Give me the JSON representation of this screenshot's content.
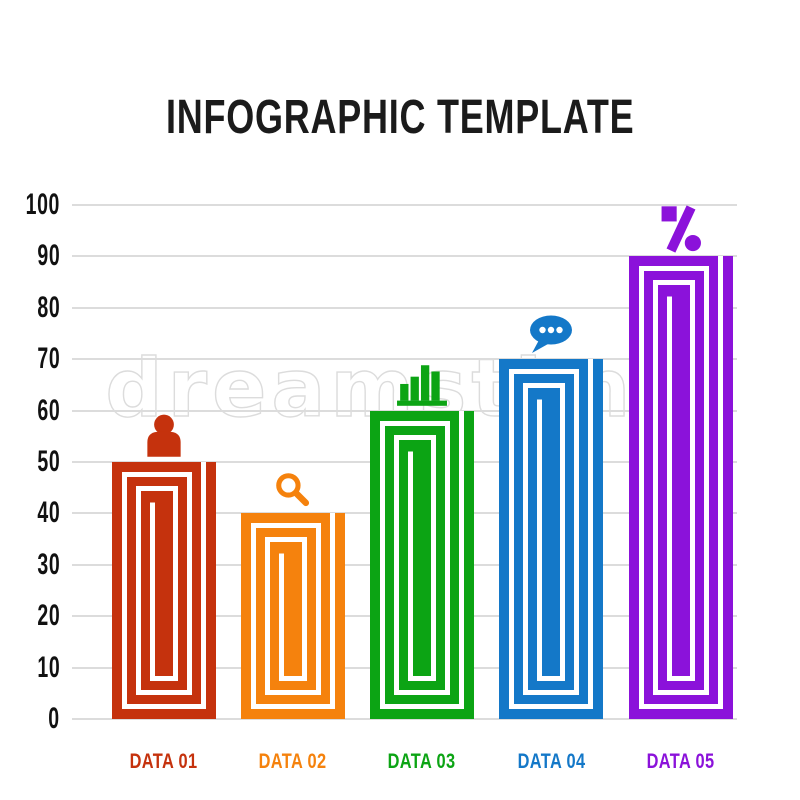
{
  "title": "INFOGRAPHIC TEMPLATE",
  "watermark": {
    "text": "dreamstime"
  },
  "chart_data": {
    "type": "bar",
    "title": "INFOGRAPHIC TEMPLATE",
    "categories": [
      "DATA 01",
      "DATA 02",
      "DATA 03",
      "DATA 04",
      "DATA 05"
    ],
    "values": [
      50,
      40,
      60,
      70,
      90
    ],
    "colors": [
      "#c5320d",
      "#f5820d",
      "#0ca414",
      "#1478c8",
      "#8b12da"
    ],
    "icons": [
      "person",
      "magnifier",
      "bar-chart",
      "speech-bubble",
      "percent"
    ],
    "xlabel": "",
    "ylabel": "",
    "ylim": [
      0,
      100
    ],
    "yticks": [
      0,
      10,
      20,
      30,
      40,
      50,
      60,
      70,
      80,
      90,
      100
    ],
    "grid": true,
    "grid_color": "#dcdcdc",
    "legend": "none",
    "bar_style": "concentric-spiral-outline",
    "axis_label_color": "#111111",
    "title_color": "#1b1b1b"
  }
}
